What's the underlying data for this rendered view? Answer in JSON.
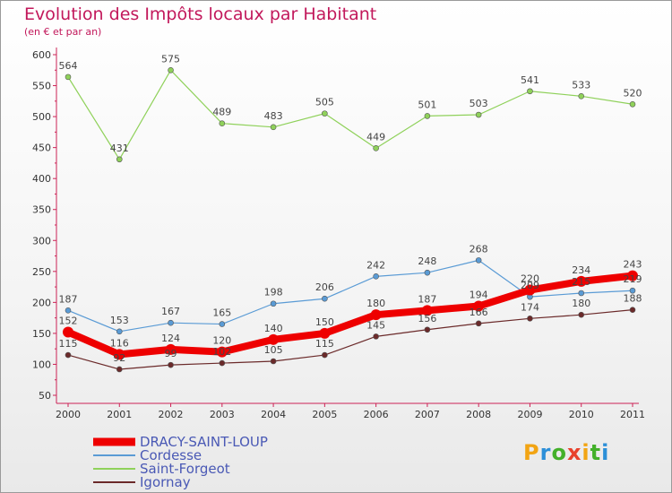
{
  "header": {
    "title": "Evolution des Impôts locaux par Habitant",
    "subtitle": "(en € et par an)"
  },
  "logo": {
    "text": "Proxiti",
    "colors": [
      "#f2a413",
      "#2c8fd8",
      "#43b02a",
      "#e8412c",
      "#f2a413",
      "#43b02a",
      "#2c8fd8"
    ]
  },
  "chart_data": {
    "type": "line",
    "x": [
      "2000",
      "2001",
      "2002",
      "2003",
      "2004",
      "2005",
      "2006",
      "2007",
      "2008",
      "2009",
      "2010",
      "2011"
    ],
    "ylim": [
      50,
      600
    ],
    "yticks": [
      50,
      100,
      150,
      200,
      250,
      300,
      350,
      400,
      450,
      500,
      550,
      600
    ],
    "grid": false,
    "legend_position": "bottom-left",
    "series": [
      {
        "name": "DRACY-SAINT-LOUP",
        "color": "#ee0000",
        "values": [
          152,
          116,
          124,
          120,
          140,
          150,
          180,
          187,
          194,
          220,
          234,
          243
        ]
      },
      {
        "name": "Cordesse",
        "color": "#5a9bd5",
        "values": [
          187,
          153,
          167,
          165,
          198,
          206,
          242,
          248,
          268,
          209,
          215,
          219
        ]
      },
      {
        "name": "Saint-Forgeot",
        "color": "#8fd15a",
        "values": [
          564,
          431,
          575,
          489,
          483,
          505,
          449,
          501,
          503,
          541,
          533,
          520
        ]
      },
      {
        "name": "Igornay",
        "color": "#6b2a2a",
        "values": [
          115,
          92,
          99,
          102,
          105,
          115,
          145,
          156,
          166,
          174,
          180,
          188
        ]
      }
    ]
  }
}
